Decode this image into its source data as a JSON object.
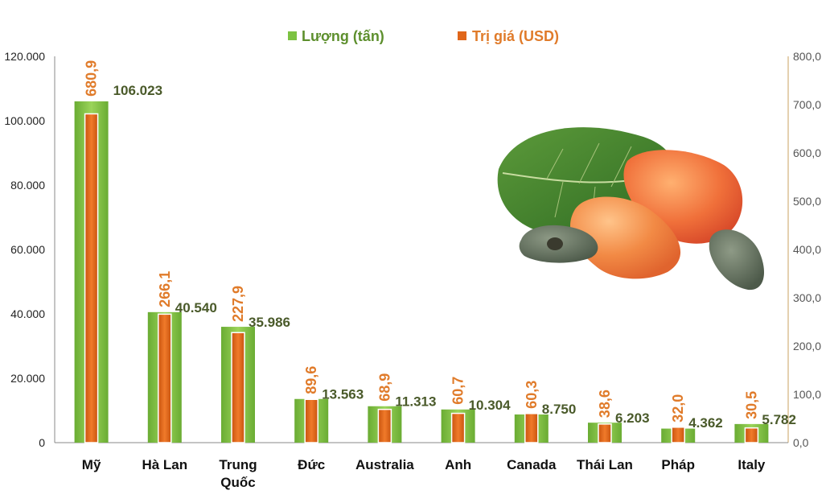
{
  "chart_data": {
    "type": "bar",
    "categories": [
      "Mỹ",
      "Hà Lan",
      "Trung Quốc",
      "Đức",
      "Australia",
      "Anh",
      "Canada",
      "Thái Lan",
      "Pháp",
      "Italy"
    ],
    "series": [
      {
        "name": "Lượng (tấn)",
        "axis": "left",
        "color": "#7cc242",
        "values": [
          106023,
          40540,
          35986,
          13563,
          11313,
          10304,
          8750,
          6203,
          4362,
          5782
        ],
        "labels": [
          "106.023",
          "40.540",
          "35.986",
          "13.563",
          "11.313",
          "10.304",
          "8.750",
          "6.203",
          "4.362",
          "5.782"
        ]
      },
      {
        "name": "Trị giá (USD)",
        "axis": "right",
        "color": "#e0661a",
        "values": [
          680.9,
          266.1,
          227.9,
          89.6,
          68.9,
          60.7,
          60.3,
          38.6,
          32.0,
          30.5
        ],
        "labels": [
          "680,9",
          "266,1",
          "227,9",
          "89,6",
          "68,9",
          "60,7",
          "60,3",
          "38,6",
          "32,0",
          "30,5"
        ]
      }
    ],
    "y_left": {
      "range": [
        0,
        120000
      ],
      "ticks": [
        "0",
        "20.000",
        "40.000",
        "60.000",
        "80.000",
        "100.000",
        "120.000"
      ]
    },
    "y_right": {
      "range": [
        0,
        800
      ],
      "ticks": [
        "0,0",
        "100,0",
        "200,0",
        "300,0",
        "400,0",
        "500,0",
        "600,0",
        "700,0",
        "800,0"
      ]
    },
    "legend_position": "top-center",
    "grid": false,
    "decoration": "cashew-fruit-illustration"
  }
}
